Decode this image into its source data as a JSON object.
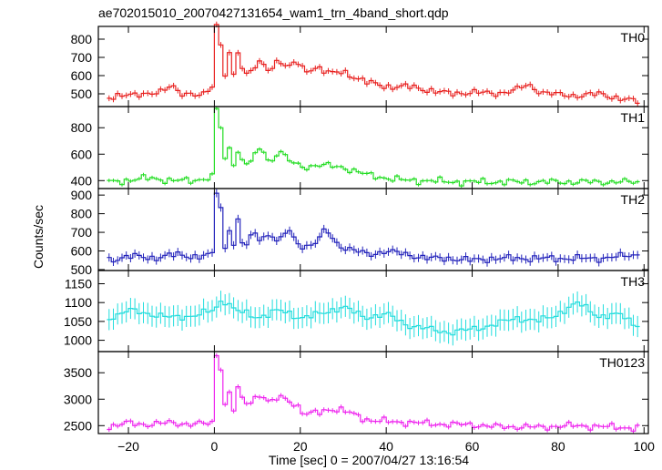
{
  "chart_data": {
    "type": "line",
    "title": "ae702015010_20070427131654_wam1_trn_4band_short.qdp",
    "xlabel": "Time [sec] 0 = 2007/04/27 13:16:54",
    "ylabel": "Counts/sec",
    "xlim": [
      -27,
      101
    ],
    "x_ticks": [
      -20,
      0,
      20,
      40,
      60,
      80,
      100
    ],
    "x_tick_labels": [
      "−20",
      "0",
      "20",
      "40",
      "60",
      "80",
      "100"
    ],
    "bin_width": 1,
    "x_start": -24.5,
    "x_end": 98.5,
    "grid": false,
    "panels": [
      {
        "name": "TH0",
        "color": "#e8201f",
        "ylim": [
          430,
          870
        ],
        "y_ticks": [
          500,
          600,
          700,
          800
        ],
        "y_tick_labels": [
          "500",
          "600",
          "700",
          "800"
        ],
        "keypoints": [
          [
            -24,
            470
          ],
          [
            -20,
            505
          ],
          [
            -15,
            490
          ],
          [
            -12,
            520
          ],
          [
            -10,
            560
          ],
          [
            -8,
            495
          ],
          [
            -5,
            490
          ],
          [
            -2,
            510
          ],
          [
            0,
            560
          ],
          [
            0.5,
            870
          ],
          [
            1.5,
            760
          ],
          [
            2.5,
            600
          ],
          [
            3.5,
            720
          ],
          [
            4.5,
            600
          ],
          [
            5.5,
            740
          ],
          [
            7,
            600
          ],
          [
            9,
            640
          ],
          [
            11,
            670
          ],
          [
            13,
            620
          ],
          [
            15,
            700
          ],
          [
            17,
            640
          ],
          [
            19,
            680
          ],
          [
            21,
            620
          ],
          [
            24,
            650
          ],
          [
            27,
            610
          ],
          [
            30,
            620
          ],
          [
            33,
            590
          ],
          [
            36,
            560
          ],
          [
            40,
            540
          ],
          [
            45,
            540
          ],
          [
            50,
            520
          ],
          [
            55,
            500
          ],
          [
            60,
            510
          ],
          [
            65,
            500
          ],
          [
            70,
            520
          ],
          [
            73,
            550
          ],
          [
            76,
            510
          ],
          [
            80,
            495
          ],
          [
            85,
            490
          ],
          [
            90,
            500
          ],
          [
            95,
            470
          ],
          [
            98,
            460
          ]
        ],
        "error": 16
      },
      {
        "name": "TH1",
        "color": "#22dd22",
        "ylim": [
          340,
          960
        ],
        "y_ticks": [
          400,
          600,
          800
        ],
        "y_tick_labels": [
          "400",
          "600",
          "800"
        ],
        "keypoints": [
          [
            -24,
            390
          ],
          [
            -15,
            420
          ],
          [
            -10,
            400
          ],
          [
            -5,
            400
          ],
          [
            0,
            430
          ],
          [
            0.5,
            940
          ],
          [
            1.5,
            800
          ],
          [
            2.5,
            560
          ],
          [
            3.5,
            640
          ],
          [
            4.5,
            540
          ],
          [
            5.5,
            620
          ],
          [
            7,
            520
          ],
          [
            9,
            560
          ],
          [
            11,
            660
          ],
          [
            13,
            520
          ],
          [
            15,
            640
          ],
          [
            17,
            560
          ],
          [
            19,
            520
          ],
          [
            21,
            500
          ],
          [
            24,
            520
          ],
          [
            27,
            510
          ],
          [
            30,
            500
          ],
          [
            33,
            470
          ],
          [
            36,
            440
          ],
          [
            40,
            420
          ],
          [
            45,
            400
          ],
          [
            50,
            400
          ],
          [
            55,
            390
          ],
          [
            60,
            390
          ],
          [
            70,
            390
          ],
          [
            80,
            390
          ],
          [
            90,
            390
          ],
          [
            98,
            390
          ]
        ],
        "error": 14
      },
      {
        "name": "TH2",
        "color": "#2222bb",
        "ylim": [
          495,
          935
        ],
        "y_ticks": [
          500,
          600,
          700,
          800,
          900
        ],
        "y_tick_labels": [
          "500",
          "600",
          "700",
          "800",
          "900"
        ],
        "keypoints": [
          [
            -24,
            550
          ],
          [
            -20,
            575
          ],
          [
            -15,
            560
          ],
          [
            -10,
            580
          ],
          [
            -5,
            570
          ],
          [
            0,
            580
          ],
          [
            0.5,
            920
          ],
          [
            1.5,
            820
          ],
          [
            2.5,
            620
          ],
          [
            3.5,
            720
          ],
          [
            4.5,
            640
          ],
          [
            5.5,
            760
          ],
          [
            7,
            600
          ],
          [
            9,
            700
          ],
          [
            11,
            660
          ],
          [
            13,
            700
          ],
          [
            15,
            640
          ],
          [
            17,
            720
          ],
          [
            19,
            650
          ],
          [
            21,
            620
          ],
          [
            24,
            650
          ],
          [
            26,
            720
          ],
          [
            28,
            650
          ],
          [
            30,
            620
          ],
          [
            33,
            600
          ],
          [
            36,
            580
          ],
          [
            40,
            600
          ],
          [
            45,
            580
          ],
          [
            50,
            560
          ],
          [
            55,
            560
          ],
          [
            60,
            550
          ],
          [
            65,
            560
          ],
          [
            70,
            560
          ],
          [
            80,
            560
          ],
          [
            90,
            560
          ],
          [
            98,
            580
          ]
        ],
        "error": 22
      },
      {
        "name": "TH3",
        "color": "#22dddd",
        "ylim": [
          970,
          1185
        ],
        "y_ticks": [
          1000,
          1050,
          1100,
          1150
        ],
        "y_tick_labels": [
          "1000",
          "1050",
          "1100",
          "1150"
        ],
        "keypoints": [
          [
            -24,
            1060
          ],
          [
            -20,
            1080
          ],
          [
            -15,
            1070
          ],
          [
            -10,
            1060
          ],
          [
            -5,
            1065
          ],
          [
            0,
            1080
          ],
          [
            2,
            1110
          ],
          [
            5,
            1080
          ],
          [
            10,
            1060
          ],
          [
            15,
            1080
          ],
          [
            20,
            1060
          ],
          [
            25,
            1070
          ],
          [
            30,
            1090
          ],
          [
            35,
            1060
          ],
          [
            40,
            1070
          ],
          [
            45,
            1040
          ],
          [
            50,
            1030
          ],
          [
            55,
            1020
          ],
          [
            60,
            1030
          ],
          [
            65,
            1040
          ],
          [
            70,
            1060
          ],
          [
            75,
            1050
          ],
          [
            80,
            1070
          ],
          [
            85,
            1100
          ],
          [
            90,
            1060
          ],
          [
            95,
            1070
          ],
          [
            98,
            1040
          ]
        ],
        "error": 28
      },
      {
        "name": "TH0123",
        "color": "#ee22ee",
        "ylim": [
          2350,
          3900
        ],
        "y_ticks": [
          2500,
          3000,
          3500
        ],
        "y_tick_labels": [
          "2500",
          "3000",
          "3500"
        ],
        "keypoints": [
          [
            -24,
            2480
          ],
          [
            -20,
            2550
          ],
          [
            -15,
            2520
          ],
          [
            -10,
            2560
          ],
          [
            -5,
            2520
          ],
          [
            0,
            2560
          ],
          [
            0.5,
            3850
          ],
          [
            1.5,
            3600
          ],
          [
            2.5,
            2900
          ],
          [
            3.5,
            3100
          ],
          [
            4.5,
            2800
          ],
          [
            5.5,
            3200
          ],
          [
            7,
            2900
          ],
          [
            9,
            3000
          ],
          [
            11,
            3100
          ],
          [
            13,
            2900
          ],
          [
            15,
            3050
          ],
          [
            17,
            3000
          ],
          [
            19,
            2900
          ],
          [
            21,
            2700
          ],
          [
            24,
            2750
          ],
          [
            27,
            2820
          ],
          [
            30,
            2780
          ],
          [
            33,
            2700
          ],
          [
            36,
            2600
          ],
          [
            40,
            2580
          ],
          [
            45,
            2560
          ],
          [
            50,
            2540
          ],
          [
            55,
            2520
          ],
          [
            60,
            2520
          ],
          [
            65,
            2480
          ],
          [
            70,
            2480
          ],
          [
            75,
            2470
          ],
          [
            80,
            2490
          ],
          [
            85,
            2500
          ],
          [
            90,
            2480
          ],
          [
            95,
            2470
          ],
          [
            98,
            2450
          ]
        ],
        "error": 45
      }
    ]
  }
}
